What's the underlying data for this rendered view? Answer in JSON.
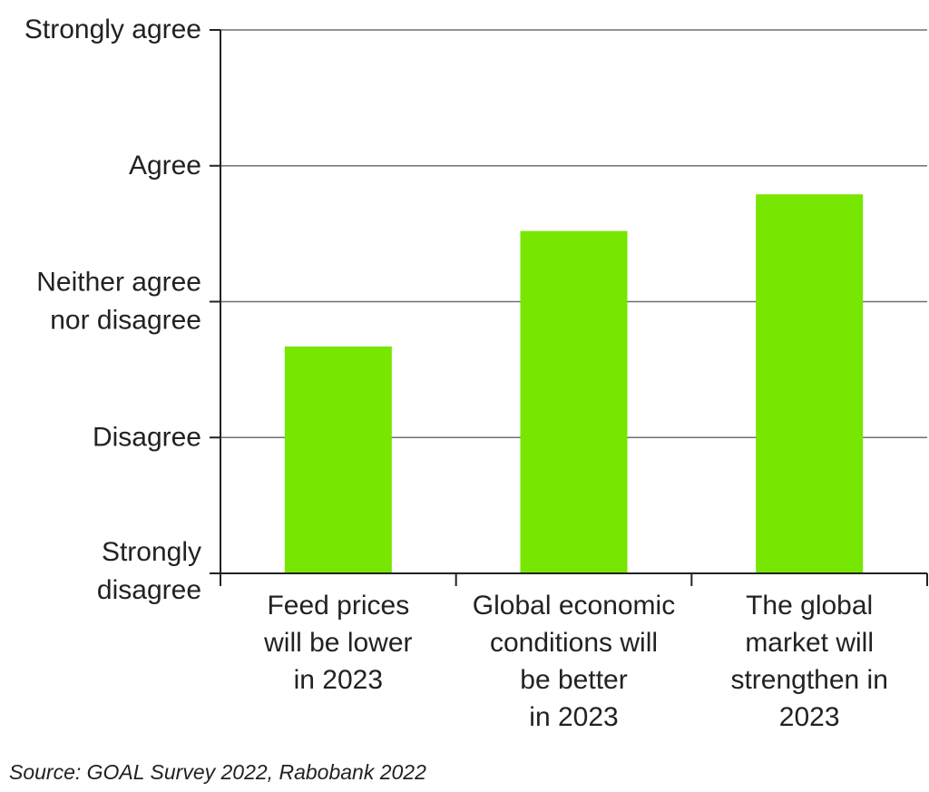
{
  "chart_data": {
    "type": "bar",
    "categories": [
      [
        "Feed prices",
        "will be lower",
        "in 2023"
      ],
      [
        "Global economic",
        "conditions will",
        "be better",
        "in 2023"
      ],
      [
        "The global",
        "market will",
        "strengthen in",
        "2023"
      ]
    ],
    "values": [
      2.67,
      3.52,
      3.79
    ],
    "ylim": [
      1,
      5
    ],
    "y_ticks": [
      {
        "value": 1,
        "label": [
          "Strongly",
          "disagree"
        ]
      },
      {
        "value": 2,
        "label": [
          "Disagree"
        ]
      },
      {
        "value": 3,
        "label": [
          "Neither agree",
          "nor disagree"
        ]
      },
      {
        "value": 4,
        "label": [
          "Agree"
        ]
      },
      {
        "value": 5,
        "label": [
          "Strongly agree"
        ]
      }
    ],
    "grid": true,
    "legend": "none",
    "bar_color": "#77e600",
    "title": "",
    "xlabel": "",
    "ylabel": ""
  },
  "source": "Source: GOAL Survey 2022, Rabobank 2022"
}
